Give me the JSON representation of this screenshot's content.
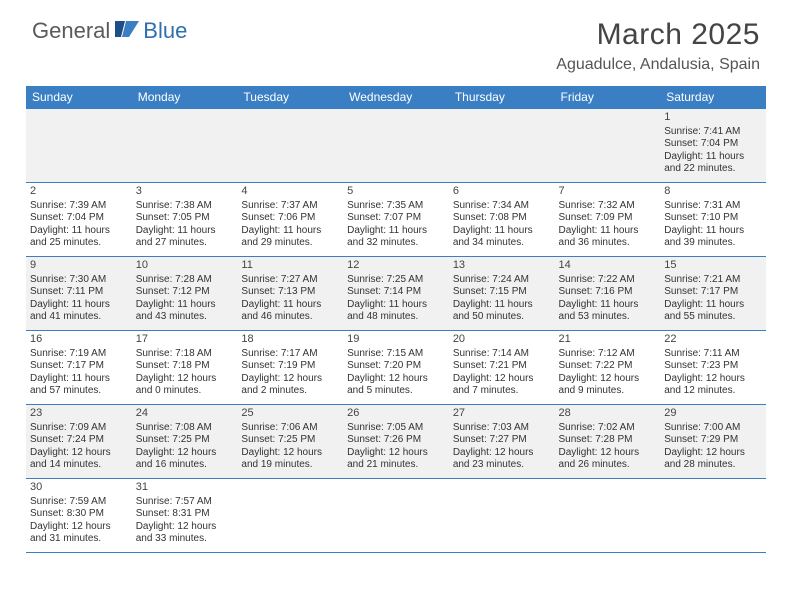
{
  "logo": {
    "part1": "General",
    "part2": "Blue"
  },
  "title": "March 2025",
  "location": "Aguadulce, Andalusia, Spain",
  "colors": {
    "header_bg": "#3a7fc4",
    "header_fg": "#ffffff",
    "row_shade": "#f1f1f1",
    "border": "#3a7fc4",
    "logo_gray": "#5a5a5a",
    "logo_blue": "#2f6fb0"
  },
  "day_names": [
    "Sunday",
    "Monday",
    "Tuesday",
    "Wednesday",
    "Thursday",
    "Friday",
    "Saturday"
  ],
  "weeks": [
    [
      null,
      null,
      null,
      null,
      null,
      null,
      {
        "n": "1",
        "sr": "Sunrise: 7:41 AM",
        "ss": "Sunset: 7:04 PM",
        "dl1": "Daylight: 11 hours",
        "dl2": "and 22 minutes."
      }
    ],
    [
      {
        "n": "2",
        "sr": "Sunrise: 7:39 AM",
        "ss": "Sunset: 7:04 PM",
        "dl1": "Daylight: 11 hours",
        "dl2": "and 25 minutes."
      },
      {
        "n": "3",
        "sr": "Sunrise: 7:38 AM",
        "ss": "Sunset: 7:05 PM",
        "dl1": "Daylight: 11 hours",
        "dl2": "and 27 minutes."
      },
      {
        "n": "4",
        "sr": "Sunrise: 7:37 AM",
        "ss": "Sunset: 7:06 PM",
        "dl1": "Daylight: 11 hours",
        "dl2": "and 29 minutes."
      },
      {
        "n": "5",
        "sr": "Sunrise: 7:35 AM",
        "ss": "Sunset: 7:07 PM",
        "dl1": "Daylight: 11 hours",
        "dl2": "and 32 minutes."
      },
      {
        "n": "6",
        "sr": "Sunrise: 7:34 AM",
        "ss": "Sunset: 7:08 PM",
        "dl1": "Daylight: 11 hours",
        "dl2": "and 34 minutes."
      },
      {
        "n": "7",
        "sr": "Sunrise: 7:32 AM",
        "ss": "Sunset: 7:09 PM",
        "dl1": "Daylight: 11 hours",
        "dl2": "and 36 minutes."
      },
      {
        "n": "8",
        "sr": "Sunrise: 7:31 AM",
        "ss": "Sunset: 7:10 PM",
        "dl1": "Daylight: 11 hours",
        "dl2": "and 39 minutes."
      }
    ],
    [
      {
        "n": "9",
        "sr": "Sunrise: 7:30 AM",
        "ss": "Sunset: 7:11 PM",
        "dl1": "Daylight: 11 hours",
        "dl2": "and 41 minutes."
      },
      {
        "n": "10",
        "sr": "Sunrise: 7:28 AM",
        "ss": "Sunset: 7:12 PM",
        "dl1": "Daylight: 11 hours",
        "dl2": "and 43 minutes."
      },
      {
        "n": "11",
        "sr": "Sunrise: 7:27 AM",
        "ss": "Sunset: 7:13 PM",
        "dl1": "Daylight: 11 hours",
        "dl2": "and 46 minutes."
      },
      {
        "n": "12",
        "sr": "Sunrise: 7:25 AM",
        "ss": "Sunset: 7:14 PM",
        "dl1": "Daylight: 11 hours",
        "dl2": "and 48 minutes."
      },
      {
        "n": "13",
        "sr": "Sunrise: 7:24 AM",
        "ss": "Sunset: 7:15 PM",
        "dl1": "Daylight: 11 hours",
        "dl2": "and 50 minutes."
      },
      {
        "n": "14",
        "sr": "Sunrise: 7:22 AM",
        "ss": "Sunset: 7:16 PM",
        "dl1": "Daylight: 11 hours",
        "dl2": "and 53 minutes."
      },
      {
        "n": "15",
        "sr": "Sunrise: 7:21 AM",
        "ss": "Sunset: 7:17 PM",
        "dl1": "Daylight: 11 hours",
        "dl2": "and 55 minutes."
      }
    ],
    [
      {
        "n": "16",
        "sr": "Sunrise: 7:19 AM",
        "ss": "Sunset: 7:17 PM",
        "dl1": "Daylight: 11 hours",
        "dl2": "and 57 minutes."
      },
      {
        "n": "17",
        "sr": "Sunrise: 7:18 AM",
        "ss": "Sunset: 7:18 PM",
        "dl1": "Daylight: 12 hours",
        "dl2": "and 0 minutes."
      },
      {
        "n": "18",
        "sr": "Sunrise: 7:17 AM",
        "ss": "Sunset: 7:19 PM",
        "dl1": "Daylight: 12 hours",
        "dl2": "and 2 minutes."
      },
      {
        "n": "19",
        "sr": "Sunrise: 7:15 AM",
        "ss": "Sunset: 7:20 PM",
        "dl1": "Daylight: 12 hours",
        "dl2": "and 5 minutes."
      },
      {
        "n": "20",
        "sr": "Sunrise: 7:14 AM",
        "ss": "Sunset: 7:21 PM",
        "dl1": "Daylight: 12 hours",
        "dl2": "and 7 minutes."
      },
      {
        "n": "21",
        "sr": "Sunrise: 7:12 AM",
        "ss": "Sunset: 7:22 PM",
        "dl1": "Daylight: 12 hours",
        "dl2": "and 9 minutes."
      },
      {
        "n": "22",
        "sr": "Sunrise: 7:11 AM",
        "ss": "Sunset: 7:23 PM",
        "dl1": "Daylight: 12 hours",
        "dl2": "and 12 minutes."
      }
    ],
    [
      {
        "n": "23",
        "sr": "Sunrise: 7:09 AM",
        "ss": "Sunset: 7:24 PM",
        "dl1": "Daylight: 12 hours",
        "dl2": "and 14 minutes."
      },
      {
        "n": "24",
        "sr": "Sunrise: 7:08 AM",
        "ss": "Sunset: 7:25 PM",
        "dl1": "Daylight: 12 hours",
        "dl2": "and 16 minutes."
      },
      {
        "n": "25",
        "sr": "Sunrise: 7:06 AM",
        "ss": "Sunset: 7:25 PM",
        "dl1": "Daylight: 12 hours",
        "dl2": "and 19 minutes."
      },
      {
        "n": "26",
        "sr": "Sunrise: 7:05 AM",
        "ss": "Sunset: 7:26 PM",
        "dl1": "Daylight: 12 hours",
        "dl2": "and 21 minutes."
      },
      {
        "n": "27",
        "sr": "Sunrise: 7:03 AM",
        "ss": "Sunset: 7:27 PM",
        "dl1": "Daylight: 12 hours",
        "dl2": "and 23 minutes."
      },
      {
        "n": "28",
        "sr": "Sunrise: 7:02 AM",
        "ss": "Sunset: 7:28 PM",
        "dl1": "Daylight: 12 hours",
        "dl2": "and 26 minutes."
      },
      {
        "n": "29",
        "sr": "Sunrise: 7:00 AM",
        "ss": "Sunset: 7:29 PM",
        "dl1": "Daylight: 12 hours",
        "dl2": "and 28 minutes."
      }
    ],
    [
      {
        "n": "30",
        "sr": "Sunrise: 7:59 AM",
        "ss": "Sunset: 8:30 PM",
        "dl1": "Daylight: 12 hours",
        "dl2": "and 31 minutes."
      },
      {
        "n": "31",
        "sr": "Sunrise: 7:57 AM",
        "ss": "Sunset: 8:31 PM",
        "dl1": "Daylight: 12 hours",
        "dl2": "and 33 minutes."
      },
      null,
      null,
      null,
      null,
      null
    ]
  ]
}
